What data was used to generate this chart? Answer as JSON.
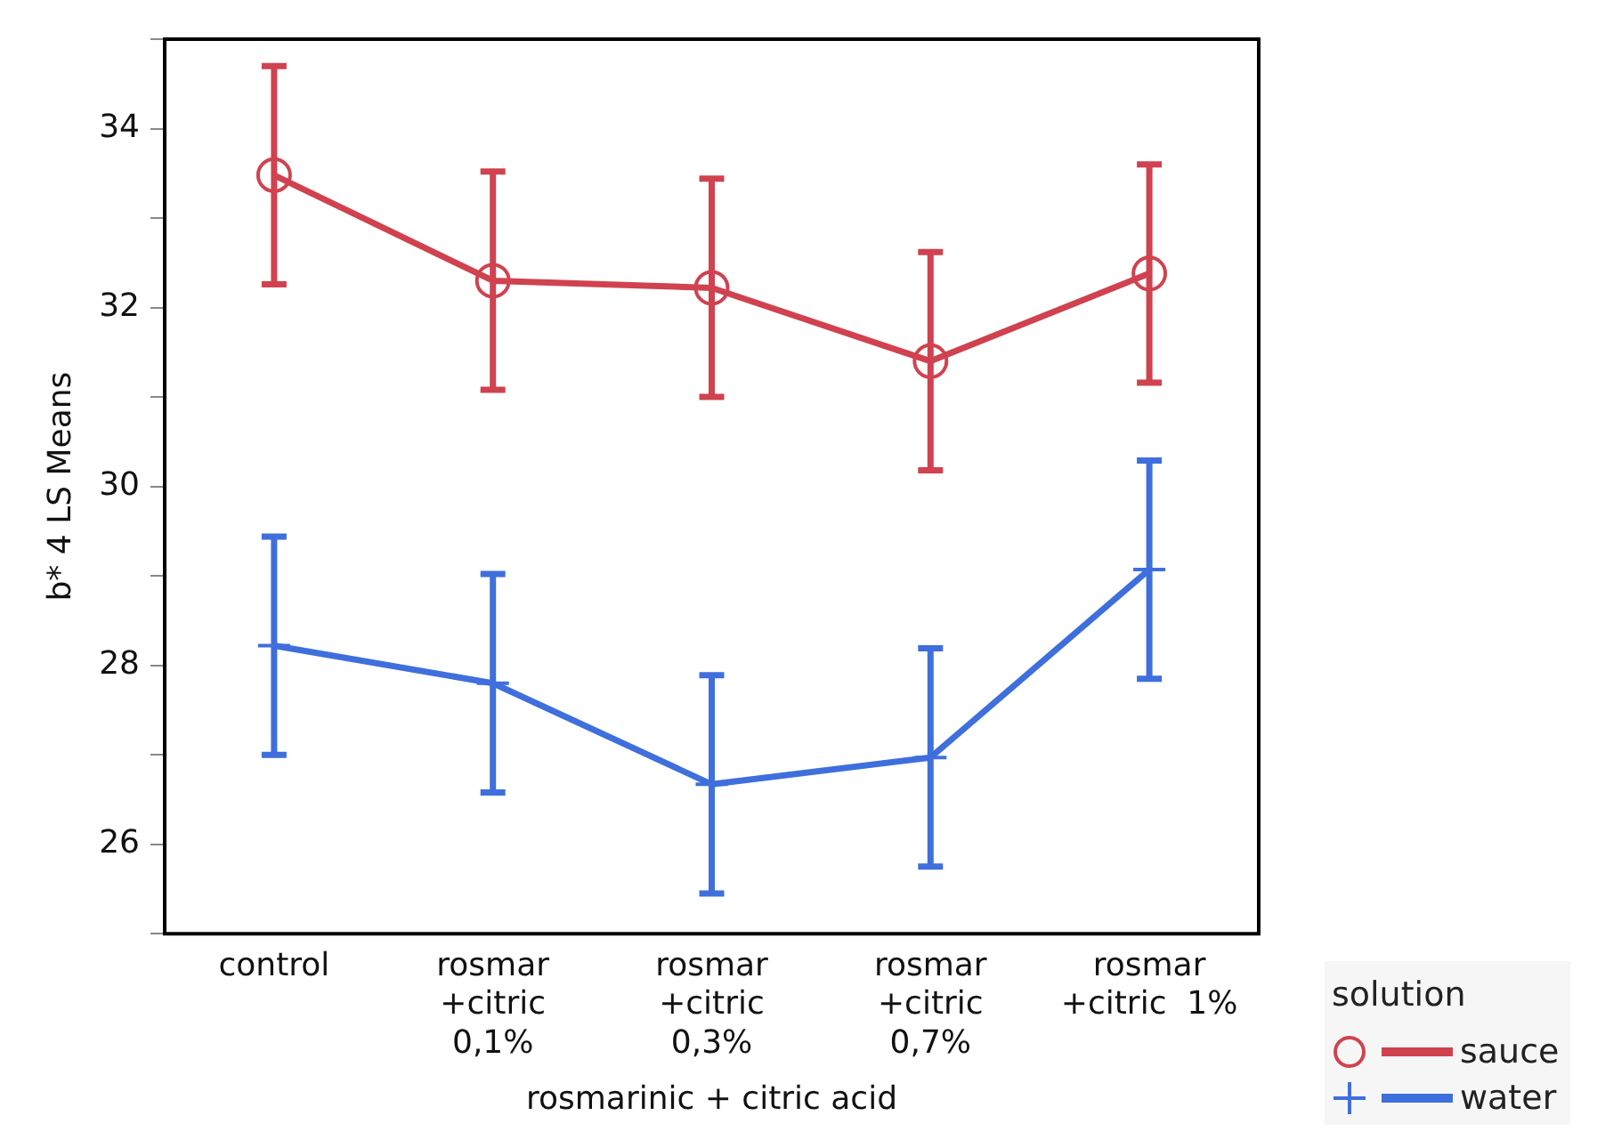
{
  "chart_data": {
    "type": "line",
    "ylabel": "b* 4 LS Means",
    "xlabel": "rosmarinic + citric acid",
    "legend_title": "solution",
    "legend": "bottom right",
    "grid": false,
    "categories": [
      "control",
      "rosmar\n+citric\n0,1%",
      "rosmar\n+citric\n0,3%",
      "rosmar\n+citric\n0,7%",
      "rosmar\n+citric  1%"
    ],
    "ylim": [
      25,
      35
    ],
    "yticks": [
      {
        "value": 25,
        "label": null
      },
      26,
      {
        "value": 27,
        "label": null
      },
      28,
      {
        "value": 29,
        "label": null
      },
      30,
      {
        "value": 31,
        "label": null
      },
      32,
      {
        "value": 33,
        "label": null
      },
      34,
      {
        "value": 35,
        "label": null
      }
    ],
    "series": [
      {
        "name": "sauce",
        "color": "#d0424f",
        "marker": "circle",
        "values": [
          33.48,
          32.3,
          32.22,
          31.4,
          32.38
        ],
        "errors": [
          1.22,
          1.22,
          1.22,
          1.22,
          1.22
        ]
      },
      {
        "name": "water",
        "color": "#3f6fdc",
        "marker": "cross",
        "values": [
          28.22,
          27.8,
          26.67,
          26.97,
          29.07
        ],
        "errors": [
          1.22,
          1.22,
          1.22,
          1.22,
          1.22
        ]
      }
    ]
  }
}
